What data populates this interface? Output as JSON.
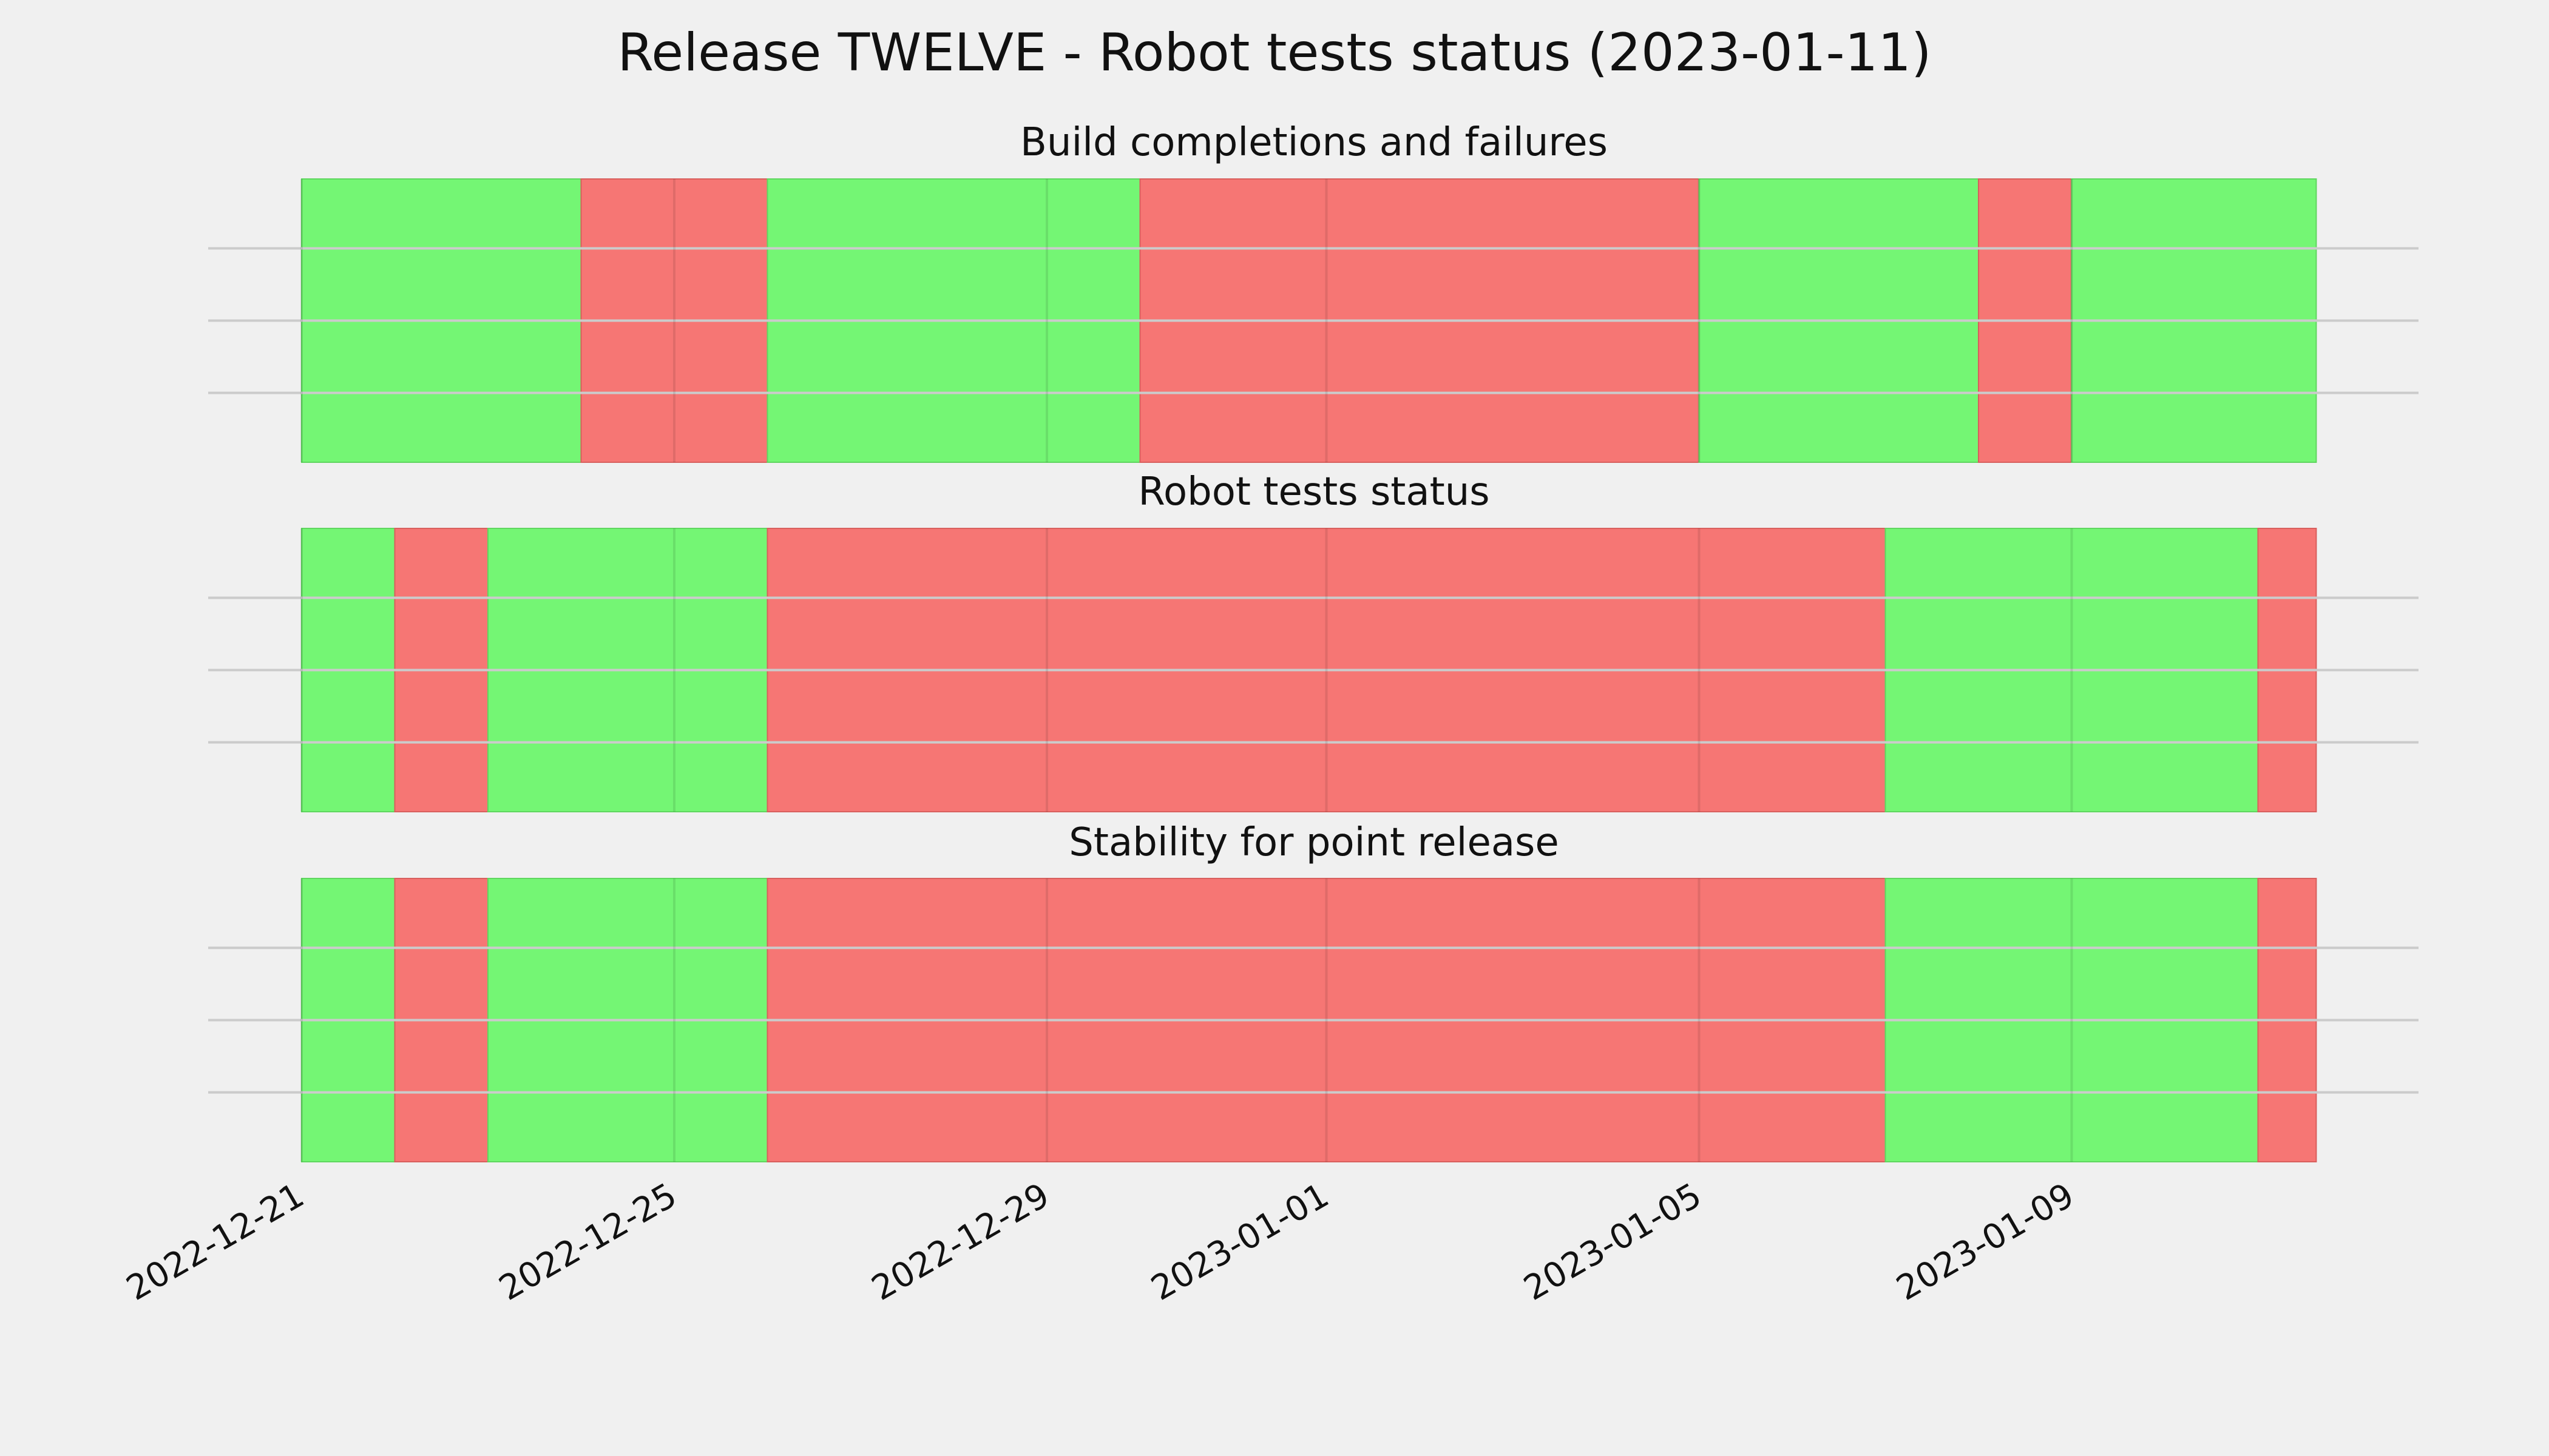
{
  "title": "Release TWELVE - Robot tests status (2023-01-11)",
  "colors": {
    "pass": "#74f674",
    "fail": "#f67674",
    "background": "#f0f0f0"
  },
  "chart_data": [
    {
      "type": "status-timeline",
      "title": "Build completions and failures",
      "segments": [
        {
          "start": "2022-12-21",
          "end": "2022-12-24",
          "status": "pass"
        },
        {
          "start": "2022-12-24",
          "end": "2022-12-26",
          "status": "fail"
        },
        {
          "start": "2022-12-26",
          "end": "2022-12-30",
          "status": "pass"
        },
        {
          "start": "2022-12-30",
          "end": "2023-01-05",
          "status": "fail"
        },
        {
          "start": "2023-01-05",
          "end": "2023-01-08",
          "status": "pass"
        },
        {
          "start": "2023-01-08",
          "end": "2023-01-09",
          "status": "fail"
        },
        {
          "start": "2023-01-09",
          "end": "2023-01-11 15:00",
          "status": "pass"
        }
      ],
      "xlim": [
        "2022-12-21",
        "2023-01-11 15:00"
      ],
      "ylabel": "",
      "xlabel": "",
      "grid": true
    },
    {
      "type": "status-timeline",
      "title": "Robot tests status",
      "segments": [
        {
          "start": "2022-12-21",
          "end": "2022-12-22",
          "status": "pass"
        },
        {
          "start": "2022-12-22",
          "end": "2022-12-23",
          "status": "fail"
        },
        {
          "start": "2022-12-23",
          "end": "2022-12-26",
          "status": "pass"
        },
        {
          "start": "2022-12-26",
          "end": "2023-01-07",
          "status": "fail"
        },
        {
          "start": "2023-01-07",
          "end": "2023-01-11",
          "status": "pass"
        },
        {
          "start": "2023-01-11",
          "end": "2023-01-11 15:00",
          "status": "fail"
        }
      ],
      "xlim": [
        "2022-12-21",
        "2023-01-11 15:00"
      ],
      "ylabel": "",
      "xlabel": "",
      "grid": true
    },
    {
      "type": "status-timeline",
      "title": "Stability for point release",
      "segments": [
        {
          "start": "2022-12-21",
          "end": "2022-12-22",
          "status": "pass"
        },
        {
          "start": "2022-12-22",
          "end": "2022-12-23",
          "status": "fail"
        },
        {
          "start": "2022-12-23",
          "end": "2022-12-26",
          "status": "pass"
        },
        {
          "start": "2022-12-26",
          "end": "2023-01-07",
          "status": "fail"
        },
        {
          "start": "2023-01-07",
          "end": "2023-01-11",
          "status": "pass"
        },
        {
          "start": "2023-01-11",
          "end": "2023-01-11 15:00",
          "status": "fail"
        }
      ],
      "xlim": [
        "2022-12-21",
        "2023-01-11 15:00"
      ],
      "ylabel": "",
      "xlabel": "",
      "grid": true
    }
  ],
  "x_ticks": [
    "2022-12-21",
    "2022-12-25",
    "2022-12-29",
    "2023-01-01",
    "2023-01-05",
    "2023-01-09"
  ]
}
